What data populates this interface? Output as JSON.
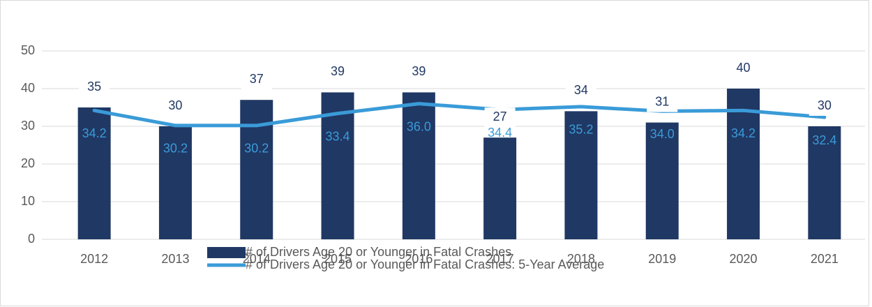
{
  "chart_data": {
    "type": "combo",
    "categories": [
      "2012",
      "2013",
      "2014",
      "2015",
      "2016",
      "2017",
      "2018",
      "2019",
      "2020",
      "2021"
    ],
    "series": [
      {
        "name": "# of Drivers Age 20 or Younger in Fatal Crashes",
        "type": "bar",
        "color": "#203864",
        "values": [
          35,
          30,
          37,
          39,
          39,
          27,
          34,
          31,
          40,
          30
        ]
      },
      {
        "name": "# of Drivers Age 20 or Younger in Fatal Crashes: 5-Year Average",
        "type": "line",
        "color": "#3a9bd8",
        "values": [
          34.2,
          30.2,
          30.2,
          33.4,
          36.0,
          34.4,
          35.2,
          34.0,
          34.2,
          32.4
        ],
        "value_labels": [
          "34.2",
          "30.2",
          "30.2",
          "33.4",
          "36.0",
          "34.4",
          "35.2",
          "34.0",
          "34.2",
          "32.4"
        ]
      }
    ],
    "ylim": [
      0,
      50
    ],
    "yticks": [
      0,
      10,
      20,
      30,
      40,
      50
    ],
    "grid": true,
    "legend": "bottom"
  }
}
